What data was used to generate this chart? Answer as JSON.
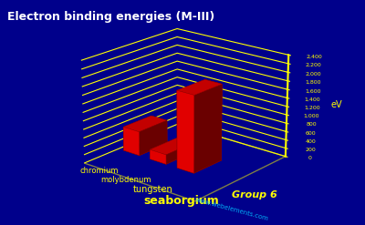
{
  "title": "Electron binding energies (M-III)",
  "ylabel": "eV",
  "xlabel": "Group 6",
  "watermark": "www.webelements.com",
  "elements": [
    "chromium",
    "molybdenum",
    "tungsten",
    "seaborgium"
  ],
  "values": [
    574,
    227,
    1809,
    0
  ],
  "bar_color": "#ff0000",
  "background_color": "#00008B",
  "axis_color": "#ffff00",
  "text_color": "#ffff00",
  "title_color": "#ffffff",
  "yticks": [
    0,
    200,
    400,
    600,
    800,
    1000,
    1200,
    1400,
    1600,
    1800,
    2000,
    2200,
    2400
  ],
  "ylim": [
    0,
    2400
  ],
  "figsize": [
    4.0,
    2.47
  ],
  "dpi": 100
}
